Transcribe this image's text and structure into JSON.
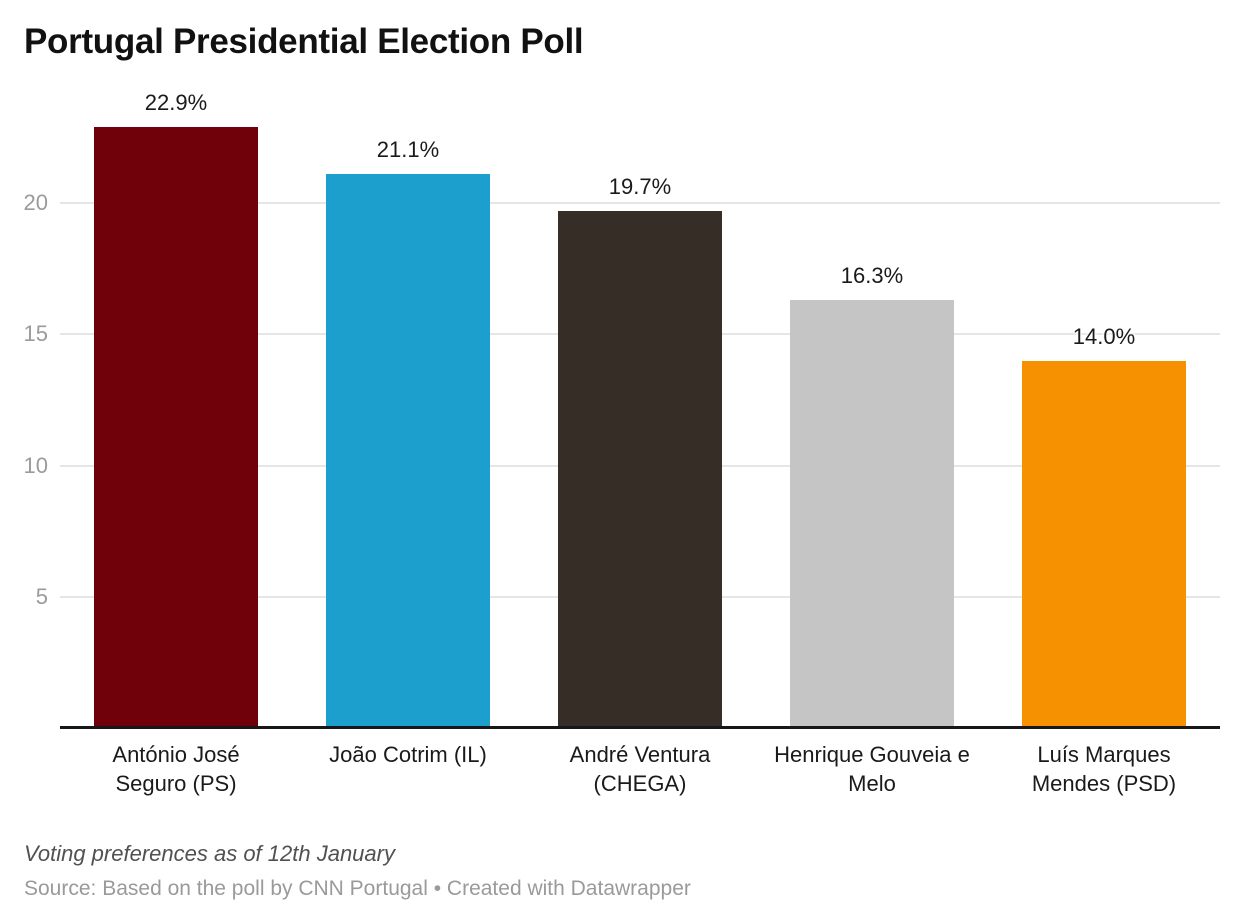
{
  "header": {
    "title": "Portugal Presidential Election Poll"
  },
  "footer": {
    "note": "Voting preferences as of 12th January",
    "source": "Source: Based on the poll by CNN Portugal • Created with Datawrapper"
  },
  "chart_data": {
    "type": "bar",
    "title": "Portugal Presidential Election Poll",
    "categories": [
      "António José Seguro (PS)",
      "João Cotrim (IL)",
      "André Ventura (CHEGA)",
      "Henrique Gouveia e Melo",
      "Luís Marques Mendes (PSD)"
    ],
    "category_lines": [
      [
        "António José",
        "Seguro (PS)"
      ],
      [
        "João Cotrim (IL)"
      ],
      [
        "André Ventura",
        "(CHEGA)"
      ],
      [
        "Henrique Gouveia e",
        "Melo"
      ],
      [
        "Luís Marques",
        "Mendes (PSD)"
      ]
    ],
    "values": [
      22.9,
      21.1,
      19.7,
      16.3,
      14.0
    ],
    "value_labels": [
      "22.9%",
      "21.1%",
      "19.7%",
      "16.3%",
      "14.0%"
    ],
    "bar_colors": [
      "#70000a",
      "#1d9fcd",
      "#362d27",
      "#c5c5c5",
      "#f69102"
    ],
    "y_ticks": [
      5,
      10,
      15,
      20
    ],
    "ylim": [
      0,
      24
    ],
    "grid": true,
    "legend": "none",
    "xlabel": "",
    "ylabel": "",
    "grid_color": "#e5e5e5",
    "axis_color": "#17171a",
    "tick_label_color": "#9b9b9b",
    "note": "Voting preferences as of 12th January",
    "source": "Source: Based on the poll by CNN Portugal • Created with Datawrapper"
  }
}
